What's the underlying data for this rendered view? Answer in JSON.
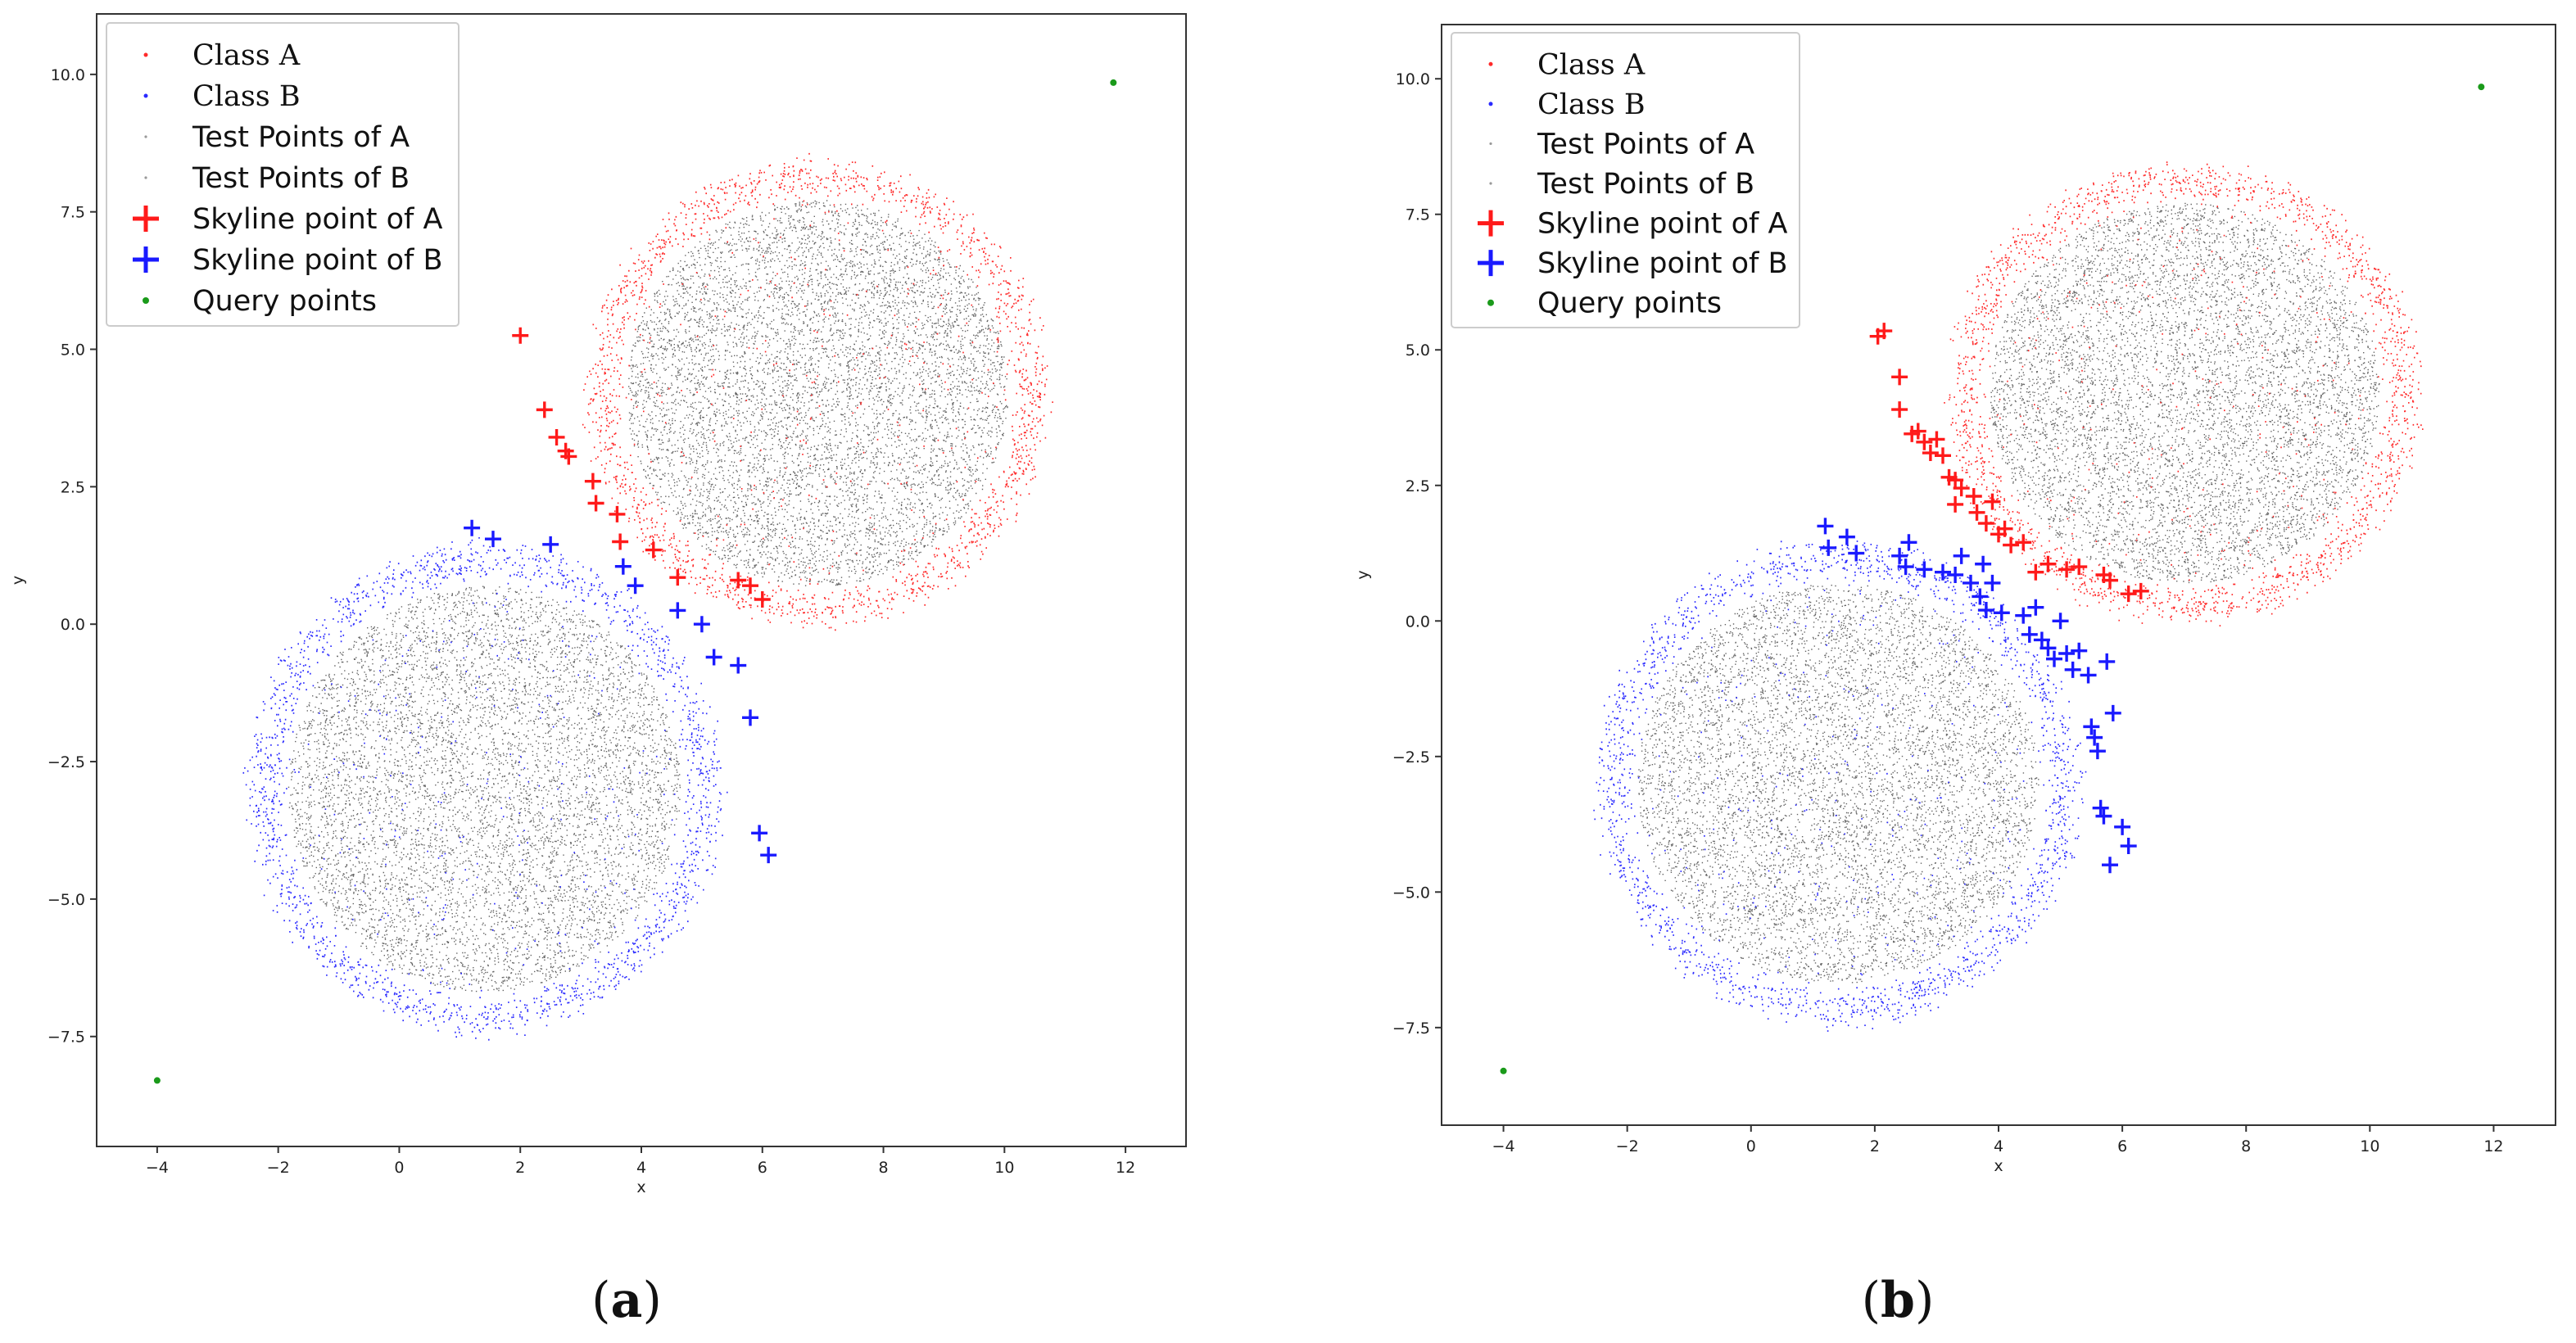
{
  "chart_data": [
    {
      "type": "scatter",
      "caption": "(a)",
      "xlabel": "x",
      "ylabel": "y",
      "xlim": [
        -5,
        13
      ],
      "ylim": [
        -9.5,
        11.1
      ],
      "xticks": [
        -4,
        -2,
        0,
        2,
        4,
        6,
        8,
        10,
        12
      ],
      "yticks": [
        -7.5,
        -5.0,
        -2.5,
        0.0,
        2.5,
        5.0,
        7.5,
        10.0
      ],
      "legend": [
        "Class A",
        "Class B",
        "Test Points of A",
        "Test Points of B",
        "Skyline point of A",
        "Skyline point of B",
        "Query points"
      ],
      "clusters": {
        "class_a": {
          "center": [
            6.9,
            4.2
          ],
          "radius": [
            3.5,
            3.9
          ]
        },
        "class_b": {
          "center": [
            1.4,
            -3.0
          ],
          "radius": [
            3.6,
            4.1
          ]
        }
      },
      "skyline_a": [
        [
          2.0,
          5.25
        ],
        [
          2.4,
          3.9
        ],
        [
          2.6,
          3.4
        ],
        [
          2.75,
          3.15
        ],
        [
          2.8,
          3.05
        ],
        [
          3.2,
          2.6
        ],
        [
          3.25,
          2.2
        ],
        [
          3.6,
          2.0
        ],
        [
          3.65,
          1.5
        ],
        [
          4.2,
          1.35
        ],
        [
          4.6,
          0.85
        ],
        [
          5.6,
          0.8
        ],
        [
          5.8,
          0.7
        ],
        [
          6.0,
          0.45
        ]
      ],
      "skyline_b": [
        [
          1.2,
          1.75
        ],
        [
          1.55,
          1.55
        ],
        [
          2.5,
          1.45
        ],
        [
          3.7,
          1.05
        ],
        [
          3.9,
          0.7
        ],
        [
          4.6,
          0.25
        ],
        [
          5.0,
          0.0
        ],
        [
          5.2,
          -0.6
        ],
        [
          5.6,
          -0.75
        ],
        [
          5.8,
          -1.7
        ],
        [
          5.95,
          -3.8
        ],
        [
          6.1,
          -4.2
        ]
      ],
      "query_points": [
        [
          -4.0,
          -8.3
        ],
        [
          11.8,
          9.85
        ]
      ],
      "colors": {
        "class_a": "#ff2a2a",
        "class_b": "#2a2aff",
        "test": "#222222",
        "skyline_a": "#ff1a1a",
        "skyline_b": "#1a1aff",
        "query": "#1a9a1a"
      }
    },
    {
      "type": "scatter",
      "caption": "(b)",
      "xlabel": "x",
      "ylabel": "y",
      "xlim": [
        -5,
        13
      ],
      "ylim": [
        -9.3,
        11.0
      ],
      "xticks": [
        -4,
        -2,
        0,
        2,
        4,
        6,
        8,
        10,
        12
      ],
      "yticks": [
        -7.5,
        -5.0,
        -2.5,
        0.0,
        2.5,
        5.0,
        7.5,
        10.0
      ],
      "legend": [
        "Class A",
        "Class B",
        "Test Points of A",
        "Test Points of B",
        "Skyline point of A",
        "Skyline point of B",
        "Query points"
      ],
      "clusters": {
        "class_a": {
          "center": [
            7.0,
            4.2
          ],
          "radius": [
            3.5,
            3.9
          ]
        },
        "class_b": {
          "center": [
            1.4,
            -3.0
          ],
          "radius": [
            3.6,
            4.1
          ]
        }
      },
      "skyline_a": [
        [
          2.05,
          5.25
        ],
        [
          2.15,
          5.35
        ],
        [
          2.4,
          4.5
        ],
        [
          2.4,
          3.9
        ],
        [
          2.6,
          3.45
        ],
        [
          2.7,
          3.5
        ],
        [
          2.8,
          3.3
        ],
        [
          2.9,
          3.1
        ],
        [
          3.0,
          3.35
        ],
        [
          3.1,
          3.05
        ],
        [
          3.2,
          2.65
        ],
        [
          3.3,
          2.6
        ],
        [
          3.4,
          2.45
        ],
        [
          3.3,
          2.15
        ],
        [
          3.6,
          2.3
        ],
        [
          3.65,
          2.0
        ],
        [
          3.8,
          1.8
        ],
        [
          3.9,
          2.2
        ],
        [
          4.0,
          1.6
        ],
        [
          4.1,
          1.7
        ],
        [
          4.2,
          1.4
        ],
        [
          4.4,
          1.45
        ],
        [
          4.6,
          0.9
        ],
        [
          4.8,
          1.05
        ],
        [
          5.1,
          0.95
        ],
        [
          5.3,
          1.0
        ],
        [
          5.7,
          0.85
        ],
        [
          5.8,
          0.75
        ],
        [
          6.1,
          0.5
        ],
        [
          6.3,
          0.55
        ]
      ],
      "skyline_b": [
        [
          1.2,
          1.75
        ],
        [
          1.25,
          1.35
        ],
        [
          1.55,
          1.55
        ],
        [
          1.7,
          1.25
        ],
        [
          2.4,
          1.2
        ],
        [
          2.5,
          1.0
        ],
        [
          2.55,
          1.45
        ],
        [
          2.8,
          0.95
        ],
        [
          3.1,
          0.9
        ],
        [
          3.3,
          0.85
        ],
        [
          3.4,
          1.2
        ],
        [
          3.55,
          0.7
        ],
        [
          3.7,
          0.45
        ],
        [
          3.75,
          1.05
        ],
        [
          3.8,
          0.2
        ],
        [
          3.9,
          0.7
        ],
        [
          4.05,
          0.15
        ],
        [
          4.4,
          0.1
        ],
        [
          4.5,
          -0.25
        ],
        [
          4.6,
          0.25
        ],
        [
          4.7,
          -0.35
        ],
        [
          4.8,
          -0.5
        ],
        [
          4.9,
          -0.7
        ],
        [
          5.0,
          0.0
        ],
        [
          5.1,
          -0.6
        ],
        [
          5.2,
          -0.9
        ],
        [
          5.3,
          -0.55
        ],
        [
          5.45,
          -1.0
        ],
        [
          5.5,
          -1.95
        ],
        [
          5.55,
          -2.15
        ],
        [
          5.6,
          -2.4
        ],
        [
          5.65,
          -3.45
        ],
        [
          5.7,
          -3.6
        ],
        [
          5.75,
          -0.75
        ],
        [
          5.8,
          -4.5
        ],
        [
          5.85,
          -1.7
        ],
        [
          6.0,
          -3.8
        ],
        [
          6.1,
          -4.15
        ]
      ],
      "query_points": [
        [
          -4.0,
          -8.3
        ],
        [
          11.8,
          9.85
        ]
      ],
      "colors": {
        "class_a": "#ff2a2a",
        "class_b": "#2a2aff",
        "test": "#222222",
        "skyline_a": "#ff1a1a",
        "skyline_b": "#1a1aff",
        "query": "#1a9a1a"
      }
    }
  ]
}
